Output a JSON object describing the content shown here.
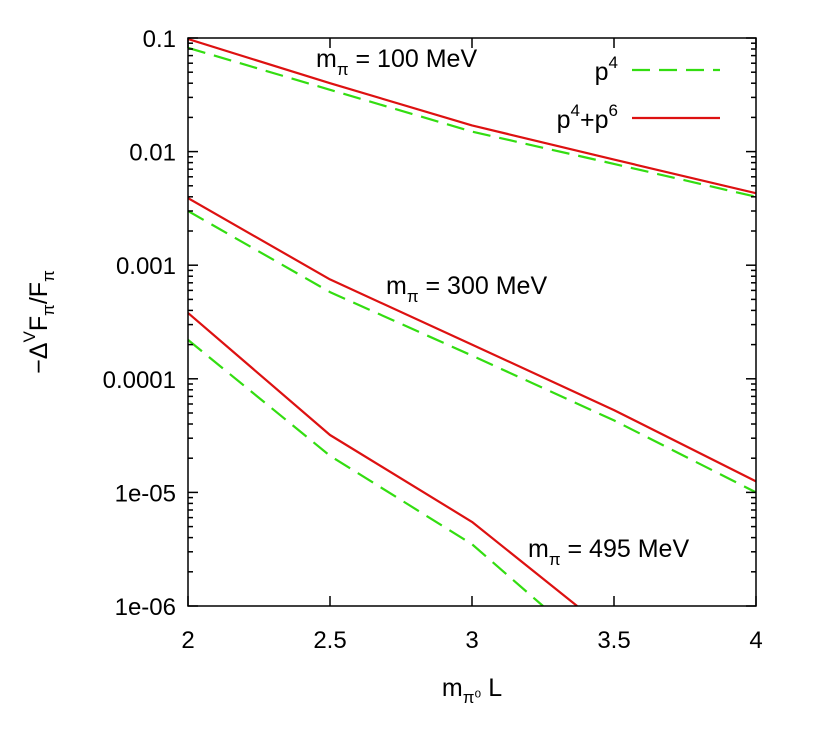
{
  "chart_data": {
    "type": "line",
    "x_scale": "linear",
    "y_scale": "log",
    "xlim": [
      2,
      4
    ],
    "ylim": [
      1e-06,
      0.1
    ],
    "x_ticks": [
      2,
      2.5,
      3,
      3.5,
      4
    ],
    "x_tick_labels": [
      "2",
      "2.5",
      "3",
      "3.5",
      "4"
    ],
    "y_ticks": [
      1e-06,
      1e-05,
      0.0001,
      0.001,
      0.01,
      0.1
    ],
    "y_tick_labels": [
      "1e-06",
      "1e-05",
      "0.0001",
      "0.001",
      "0.01",
      "0.1"
    ],
    "xlabel": {
      "main": "m",
      "sub": "π⁰",
      "tail": " L"
    },
    "ylabel": {
      "minus": "−Δ",
      "sup": "V",
      "body1": "F",
      "sub1": "π",
      "slash": "/F",
      "sub2": "π"
    },
    "grid": false,
    "legend": {
      "placement": "top-right",
      "entries": [
        {
          "label_main": "p",
          "label_sup": "4",
          "label_tail": "",
          "label_tail_sup": "",
          "style": "dashed",
          "color": "#33dd11"
        },
        {
          "label_main": "p",
          "label_sup": "4",
          "label_tail": "+p",
          "label_tail_sup": "6",
          "style": "solid",
          "color": "#dd1111"
        }
      ]
    },
    "annotations": [
      {
        "main": "m",
        "sub": "π",
        "tail": " = 100 MeV"
      },
      {
        "main": "m",
        "sub": "π",
        "tail": " = 300 MeV"
      },
      {
        "main": "m",
        "sub": "π",
        "tail": " = 495 MeV"
      }
    ],
    "series": [
      {
        "mass": "100 MeV",
        "order": "p4",
        "style": "dashed",
        "color": "#33dd11",
        "x": [
          2.0,
          2.5,
          3.0,
          3.5,
          4.0
        ],
        "y": [
          0.082,
          0.035,
          0.015,
          0.0078,
          0.004
        ]
      },
      {
        "mass": "100 MeV",
        "order": "p4+p6",
        "style": "solid",
        "color": "#dd1111",
        "x": [
          2.0,
          2.5,
          3.0,
          3.5,
          4.0
        ],
        "y": [
          0.098,
          0.04,
          0.017,
          0.0085,
          0.0043
        ]
      },
      {
        "mass": "300 MeV",
        "order": "p4",
        "style": "dashed",
        "color": "#33dd11",
        "x": [
          2.0,
          2.5,
          3.0,
          3.5,
          4.0
        ],
        "y": [
          0.003,
          0.00058,
          0.00016,
          4.3e-05,
          1e-05
        ]
      },
      {
        "mass": "300 MeV",
        "order": "p4+p6",
        "style": "solid",
        "color": "#dd1111",
        "x": [
          2.0,
          2.5,
          3.0,
          3.5,
          4.0
        ],
        "y": [
          0.0039,
          0.00075,
          0.0002,
          5.3e-05,
          1.25e-05
        ]
      },
      {
        "mass": "495 MeV",
        "order": "p4",
        "style": "dashed",
        "color": "#33dd11",
        "x": [
          2.0,
          2.5,
          3.0,
          3.25
        ],
        "y": [
          0.00022,
          2.1e-05,
          3.5e-06,
          1e-06
        ]
      },
      {
        "mass": "495 MeV",
        "order": "p4+p6",
        "style": "solid",
        "color": "#dd1111",
        "x": [
          2.0,
          2.5,
          3.0,
          3.37
        ],
        "y": [
          0.00038,
          3.2e-05,
          5.5e-06,
          1e-06
        ]
      }
    ]
  }
}
